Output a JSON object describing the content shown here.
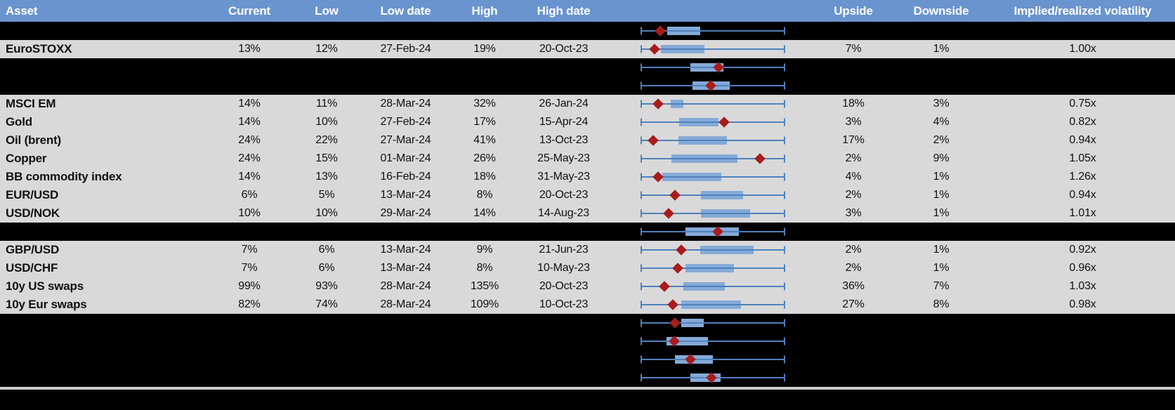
{
  "colors": {
    "header_bg": "#6a94ce",
    "header_text": "#ffffff",
    "row_bg": "#d9d9d9",
    "hidden_row_bg": "#000000",
    "whisker": "#4f81bd",
    "box": "#85aad8",
    "marker": "#a81c1c",
    "divider": "#cbcbcb",
    "background": "#000000"
  },
  "chart_data": {
    "type": "table",
    "embedded_chart_type": "boxplot-with-marker",
    "boxplot_note": "box = interquartile band, diamond = current level; positions normalized 0-1 across the whisker span (whiskers identical full-span for every row)",
    "columns": [
      "Asset",
      "Current",
      "Low",
      "Low date",
      "High",
      "High date",
      "Upside",
      "Downside",
      "Implied/realized volatility"
    ],
    "rows": [
      {
        "visible": false,
        "box": [
          0.183,
          0.411
        ],
        "marker": 0.135
      },
      {
        "visible": true,
        "label": "EuroSTOXX",
        "current": "13%",
        "low": "12%",
        "low_date": "27-Feb-24",
        "high": "19%",
        "high_date": "20-Oct-23",
        "upside": "7%",
        "downside": "1%",
        "implied_realized": "1.00x",
        "box": [
          0.143,
          0.443
        ],
        "marker": 0.099
      },
      {
        "visible": false,
        "box": [
          0.346,
          0.573
        ],
        "marker": 0.537
      },
      {
        "visible": false,
        "box": [
          0.359,
          0.618
        ],
        "marker": 0.484
      },
      {
        "visible": true,
        "label": "MSCI EM",
        "current": "14%",
        "low": "11%",
        "low_date": "28-Mar-24",
        "high": "32%",
        "high_date": "26-Jan-24",
        "upside": "18%",
        "downside": "3%",
        "implied_realized": "0.75x",
        "box": [
          0.208,
          0.297
        ],
        "marker": 0.122
      },
      {
        "visible": true,
        "label": "Gold",
        "current": "14%",
        "low": "10%",
        "low_date": "27-Feb-24",
        "high": "17%",
        "high_date": "15-Apr-24",
        "upside": "3%",
        "downside": "4%",
        "implied_realized": "0.82x",
        "box": [
          0.265,
          0.537
        ],
        "marker": 0.576
      },
      {
        "visible": true,
        "label": "Oil (brent)",
        "current": "24%",
        "low": "22%",
        "low_date": "27-Mar-24",
        "high": "41%",
        "high_date": "13-Oct-23",
        "upside": "17%",
        "downside": "2%",
        "implied_realized": "0.94x",
        "box": [
          0.261,
          0.597
        ],
        "marker": 0.086
      },
      {
        "visible": true,
        "label": "Copper",
        "current": "24%",
        "low": "15%",
        "low_date": "01-Mar-24",
        "high": "26%",
        "high_date": "25-May-23",
        "upside": "2%",
        "downside": "9%",
        "implied_realized": "1.05x",
        "box": [
          0.216,
          0.67
        ],
        "marker": 0.824
      },
      {
        "visible": true,
        "label": "BB commodity index",
        "current": "14%",
        "low": "13%",
        "low_date": "16-Feb-24",
        "high": "18%",
        "high_date": "31-May-23",
        "upside": "4%",
        "downside": "1%",
        "implied_realized": "1.26x",
        "box": [
          0.151,
          0.557
        ],
        "marker": 0.119
      },
      {
        "visible": true,
        "label": "EUR/USD",
        "current": "6%",
        "low": "5%",
        "low_date": "13-Mar-24",
        "high": "8%",
        "high_date": "20-Oct-23",
        "upside": "2%",
        "downside": "1%",
        "implied_realized": "0.94x",
        "box": [
          0.419,
          0.711
        ],
        "marker": 0.24
      },
      {
        "visible": true,
        "label": "USD/NOK",
        "current": "10%",
        "low": "10%",
        "low_date": "29-Mar-24",
        "high": "14%",
        "high_date": "14-Aug-23",
        "upside": "3%",
        "downside": "1%",
        "implied_realized": "1.01x",
        "box": [
          0.419,
          0.759
        ],
        "marker": 0.192
      },
      {
        "visible": false,
        "box": [
          0.313,
          0.679
        ],
        "marker": 0.532
      },
      {
        "visible": true,
        "label": "GBP/USD",
        "current": "7%",
        "low": "6%",
        "low_date": "13-Mar-24",
        "high": "9%",
        "high_date": "21-Jun-23",
        "upside": "2%",
        "downside": "1%",
        "implied_realized": "0.92x",
        "box": [
          0.411,
          0.784
        ],
        "marker": 0.281
      },
      {
        "visible": true,
        "label": "USD/CHF",
        "current": "7%",
        "low": "6%",
        "low_date": "13-Mar-24",
        "high": "8%",
        "high_date": "10-May-23",
        "upside": "2%",
        "downside": "1%",
        "implied_realized": "0.96x",
        "box": [
          0.313,
          0.646
        ],
        "marker": 0.257
      },
      {
        "visible": true,
        "label": "10y US swaps",
        "current": "99%",
        "low": "93%",
        "low_date": "28-Mar-24",
        "high": "135%",
        "high_date": "20-Oct-23",
        "upside": "36%",
        "downside": "7%",
        "implied_realized": "1.03x",
        "box": [
          0.294,
          0.581
        ],
        "marker": 0.163
      },
      {
        "visible": true,
        "label": "10y Eur swaps",
        "current": "82%",
        "low": "74%",
        "low_date": "28-Mar-24",
        "high": "109%",
        "high_date": "10-Oct-23",
        "upside": "27%",
        "downside": "8%",
        "implied_realized": "0.98x",
        "box": [
          0.281,
          0.695
        ],
        "marker": 0.224
      },
      {
        "visible": false,
        "box": [
          0.281,
          0.435
        ],
        "marker": 0.24
      },
      {
        "visible": false,
        "box": [
          0.18,
          0.464
        ],
        "marker": 0.232
      },
      {
        "visible": false,
        "box": [
          0.24,
          0.5
        ],
        "marker": 0.346
      },
      {
        "visible": false,
        "box": [
          0.346,
          0.552
        ],
        "marker": 0.489
      }
    ]
  }
}
